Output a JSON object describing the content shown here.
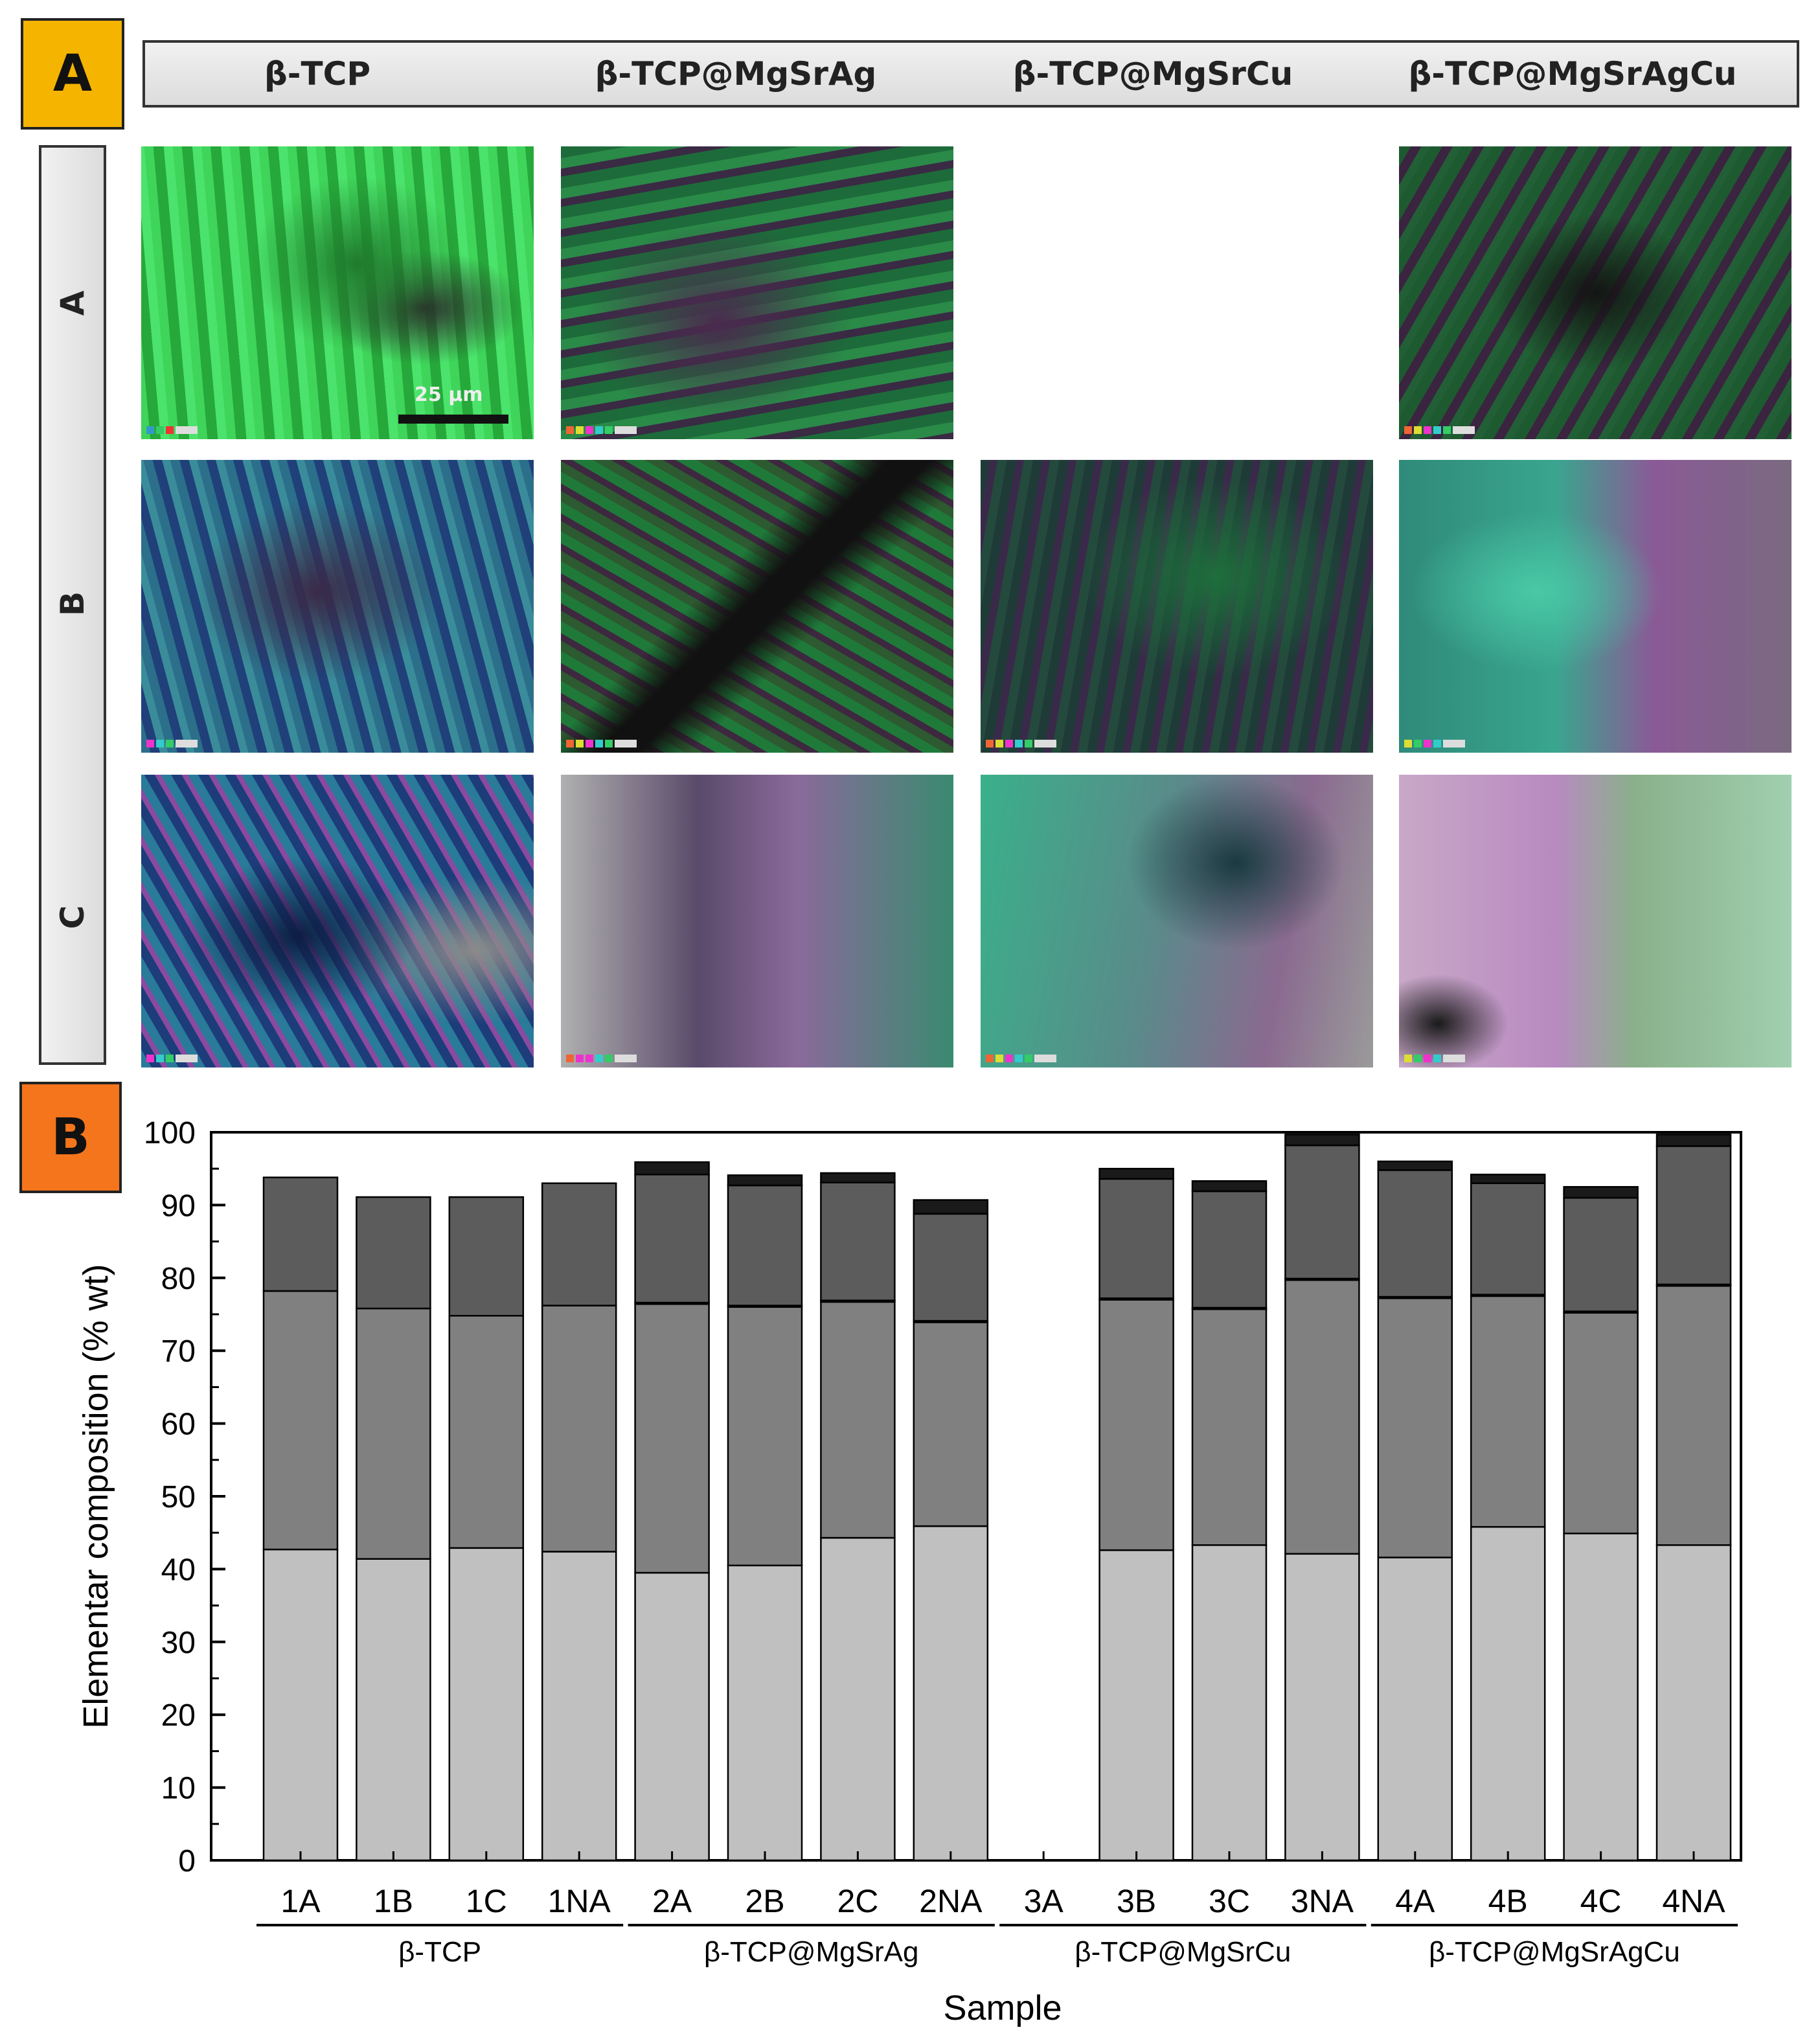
{
  "panels": {
    "a": "A",
    "b": "B"
  },
  "map_grid": {
    "columns": [
      "β-TCP",
      "β-TCP@MgSrAg",
      "β-TCP@MgSrCu",
      "β-TCP@MgSrAgCu"
    ],
    "rows": [
      "A",
      "B",
      "C"
    ],
    "scale_bar": "25 µm",
    "missing_cell": "β-TCP@MgSrCu / A"
  },
  "chart_data": {
    "type": "bar",
    "stacked": true,
    "xlabel": "Sample",
    "ylabel": "Elementar composition (% wt)",
    "ylim": [
      0,
      100
    ],
    "yticks": [
      0,
      10,
      20,
      30,
      40,
      50,
      60,
      70,
      80,
      90,
      100
    ],
    "grid": false,
    "categories": [
      "1A",
      "1B",
      "1C",
      "1NA",
      "2A",
      "2B",
      "2C",
      "2NA",
      "3A",
      "3B",
      "3C",
      "3NA",
      "4A",
      "4B",
      "4C",
      "4NA"
    ],
    "groups": [
      {
        "label": "β-TCP",
        "categories": [
          "1A",
          "1B",
          "1C",
          "1NA"
        ]
      },
      {
        "label": "β-TCP@MgSrAg",
        "categories": [
          "2A",
          "2B",
          "2C",
          "2NA"
        ]
      },
      {
        "label": "β-TCP@MgSrCu",
        "categories": [
          "3A",
          "3B",
          "3C",
          "3NA"
        ]
      },
      {
        "label": "β-TCP@MgSrAgCu",
        "categories": [
          "4A",
          "4B",
          "4C",
          "4NA"
        ]
      }
    ],
    "series": [
      {
        "color": "#c0c0c0",
        "values": [
          42.7,
          41.4,
          42.9,
          42.4,
          39.5,
          40.5,
          44.3,
          45.9,
          null,
          42.6,
          43.3,
          42.1,
          41.6,
          45.8,
          44.9,
          43.3
        ]
      },
      {
        "color": "#808080",
        "values": [
          35.5,
          34.4,
          31.9,
          33.8,
          36.9,
          35.5,
          32.4,
          28.0,
          null,
          34.4,
          32.4,
          37.6,
          35.6,
          31.7,
          30.3,
          35.6
        ]
      },
      {
        "color": "#1a1a1a",
        "values": [
          0,
          0,
          0,
          0,
          0.2,
          0.2,
          0.2,
          0.2,
          null,
          0.2,
          0.2,
          0.2,
          0.2,
          0.2,
          0.2,
          0.2
        ]
      },
      {
        "color": "#5c5c5c",
        "values": [
          15.6,
          15.3,
          16.3,
          16.8,
          17.6,
          16.5,
          16.2,
          14.7,
          null,
          16.4,
          16.0,
          18.3,
          17.4,
          15.3,
          15.6,
          19.0
        ]
      },
      {
        "color": "#1a1a1a",
        "values": [
          0,
          0,
          0,
          0,
          1.7,
          1.4,
          1.3,
          1.9,
          null,
          1.4,
          1.4,
          1.5,
          1.2,
          1.2,
          1.5,
          1.6
        ]
      }
    ]
  },
  "colors": {
    "badge_a": "#f5b400",
    "badge_b": "#f4751c"
  }
}
